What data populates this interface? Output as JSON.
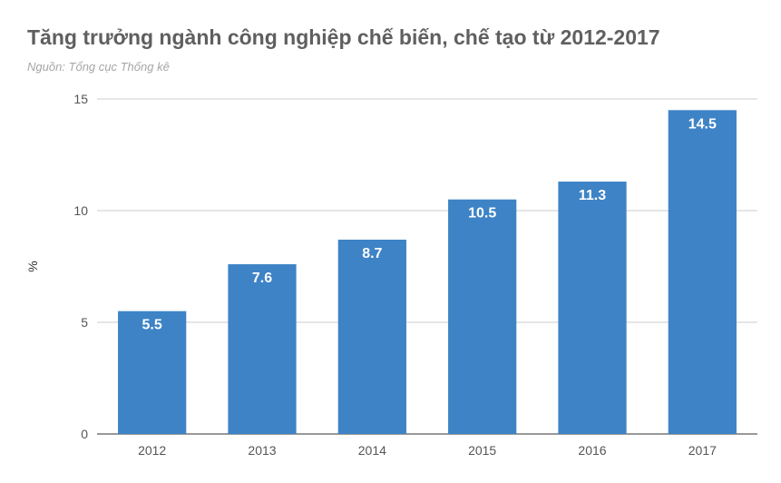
{
  "title": "Tăng trưởng ngành công nghiệp chế biến, chế tạo từ 2012-2017",
  "subtitle": "Nguồn: Tổng cục Thống kê",
  "chart_data": {
    "type": "bar",
    "categories": [
      "2012",
      "2013",
      "2014",
      "2015",
      "2016",
      "2017"
    ],
    "values": [
      5.5,
      7.6,
      8.7,
      10.5,
      11.3,
      14.5
    ],
    "data_labels": [
      "5.5",
      "7.6",
      "8.7",
      "10.5",
      "11.3",
      "14.5"
    ],
    "ylabel": "%",
    "xlabel": "",
    "ylim": [
      0,
      15
    ],
    "yticks": [
      0,
      5,
      10,
      15
    ],
    "grid": true,
    "bar_color": "#3d83c6",
    "grid_color": "#cccccc"
  }
}
